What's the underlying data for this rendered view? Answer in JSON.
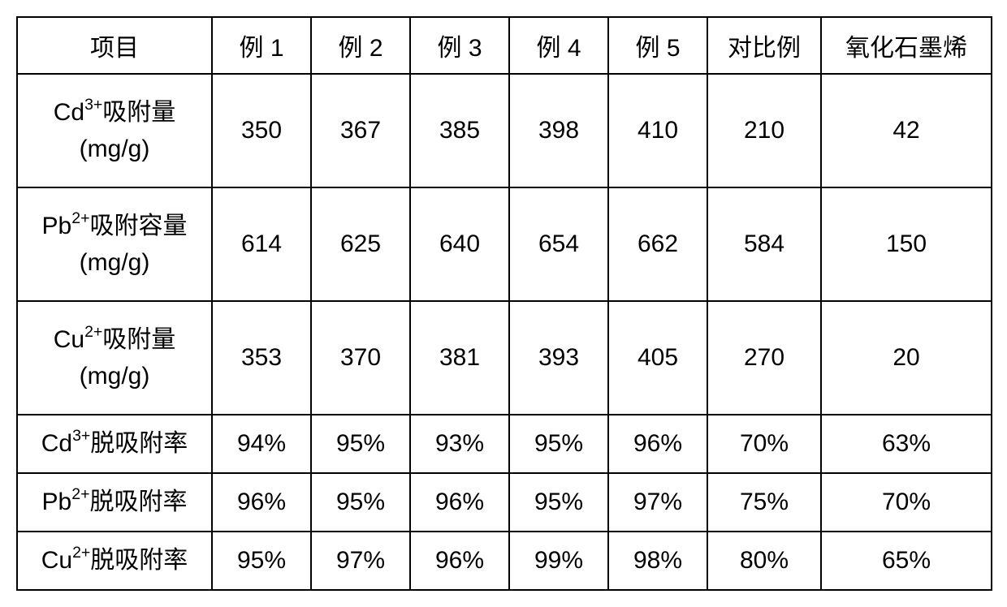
{
  "table": {
    "headers": {
      "item": "项目",
      "ex1": "例 1",
      "ex2": "例 2",
      "ex3": "例 3",
      "ex4": "例 4",
      "ex5": "例 5",
      "compare": "对比例",
      "graphene": "氧化石墨烯"
    },
    "rows": [
      {
        "label_prefix": "Cd",
        "label_sup": "3+",
        "label_suffix_line1": "吸附量",
        "label_line2": "(mg/g)",
        "height": "tall",
        "v1": "350",
        "v2": "367",
        "v3": "385",
        "v4": "398",
        "v5": "410",
        "vcompare": "210",
        "vgraphene": "42"
      },
      {
        "label_prefix": "Pb",
        "label_sup": "2+",
        "label_suffix_line1": "吸附容量",
        "label_line2": "(mg/g)",
        "height": "tall",
        "v1": "614",
        "v2": "625",
        "v3": "640",
        "v4": "654",
        "v5": "662",
        "vcompare": "584",
        "vgraphene": "150"
      },
      {
        "label_prefix": "Cu",
        "label_sup": "2+",
        "label_suffix_line1": "吸附量",
        "label_line2": "(mg/g)",
        "height": "tall",
        "v1": "353",
        "v2": "370",
        "v3": "381",
        "v4": "393",
        "v5": "405",
        "vcompare": "270",
        "vgraphene": "20"
      },
      {
        "label_prefix": "Cd",
        "label_sup": "3+",
        "label_suffix_line1": "脱吸附率",
        "label_line2": "",
        "height": "short",
        "v1": "94%",
        "v2": "95%",
        "v3": "93%",
        "v4": "95%",
        "v5": "96%",
        "vcompare": "70%",
        "vgraphene": "63%"
      },
      {
        "label_prefix": "Pb",
        "label_sup": "2+",
        "label_suffix_line1": "脱吸附率",
        "label_line2": "",
        "height": "short",
        "v1": "96%",
        "v2": "95%",
        "v3": "96%",
        "v4": "95%",
        "v5": "97%",
        "vcompare": "75%",
        "vgraphene": "70%"
      },
      {
        "label_prefix": "Cu",
        "label_sup": "2+",
        "label_suffix_line1": "脱吸附率",
        "label_line2": "",
        "height": "short",
        "v1": "95%",
        "v2": "97%",
        "v3": "96%",
        "v4": "99%",
        "v5": "98%",
        "vcompare": "80%",
        "vgraphene": "65%"
      }
    ]
  }
}
